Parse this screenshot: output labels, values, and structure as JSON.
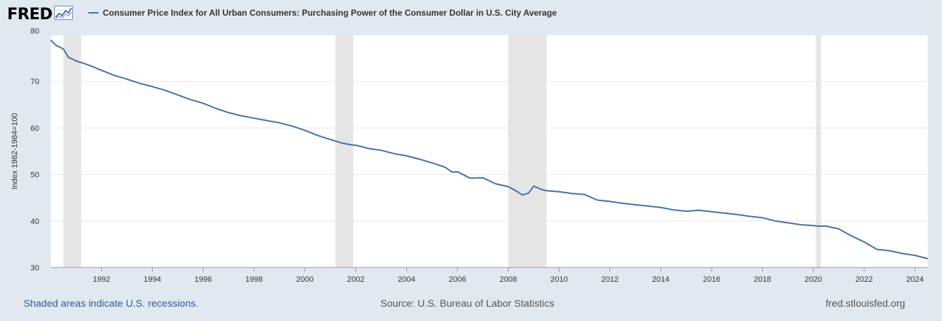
{
  "header": {
    "logo_text": "FRED",
    "logo_icon": "chart-line-icon",
    "legend_label": "Consumer Price Index for All Urban Consumers: Purchasing Power of the Consumer Dollar in U.S. City Average"
  },
  "footer": {
    "recession_note": "Shaded areas indicate U.S. recessions.",
    "source": "Source: U.S. Bureau of Labor Statistics",
    "site": "fred.stlouisfed.org"
  },
  "colors": {
    "background": "#e1e9f0",
    "plot_background": "#ffffff",
    "series": "#4572a7",
    "recession": "#e5e5e5",
    "grid": "#e6e6e6"
  },
  "chart_data": {
    "type": "line",
    "title": "Consumer Price Index for All Urban Consumers: Purchasing Power of the Consumer Dollar in U.S. City Average",
    "xlabel": "",
    "ylabel": "Index 1982-1984=100",
    "xlim": [
      1990.0,
      2024.5
    ],
    "ylim": [
      30,
      80
    ],
    "x_ticks": [
      "1992",
      "1994",
      "1996",
      "1998",
      "2000",
      "2002",
      "2004",
      "2006",
      "2008",
      "2010",
      "2012",
      "2014",
      "2016",
      "2018",
      "2020",
      "2022",
      "2024"
    ],
    "y_ticks": [
      30,
      40,
      50,
      60,
      70,
      80
    ],
    "grid": true,
    "legend": "top-left",
    "recessions": [
      [
        1990.5,
        1991.2
      ],
      [
        2001.2,
        2001.9
      ],
      [
        2008.0,
        2009.5
      ],
      [
        2020.1,
        2020.3
      ]
    ],
    "series": [
      {
        "name": "Consumer Price Index for All Urban Consumers: Purchasing Power of the Consumer Dollar in U.S. City Average",
        "x": [
          1990.0,
          1990.2,
          1990.5,
          1990.7,
          1990.9,
          1991.0,
          1991.3,
          1991.6,
          1992.0,
          1992.5,
          1993.0,
          1993.5,
          1994.0,
          1994.5,
          1995.0,
          1995.5,
          1996.0,
          1996.5,
          1997.0,
          1997.5,
          1998.0,
          1998.5,
          1999.0,
          1999.5,
          2000.0,
          2000.5,
          2001.0,
          2001.5,
          2001.9,
          2002.0,
          2002.5,
          2003.0,
          2003.5,
          2004.0,
          2004.5,
          2005.0,
          2005.5,
          2005.8,
          2006.0,
          2006.5,
          2007.0,
          2007.5,
          2008.0,
          2008.3,
          2008.55,
          2008.8,
          2009.0,
          2009.3,
          2009.5,
          2010.0,
          2010.5,
          2011.0,
          2011.5,
          2012.0,
          2012.5,
          2013.0,
          2013.5,
          2014.0,
          2014.5,
          2015.0,
          2015.5,
          2016.0,
          2016.5,
          2017.0,
          2017.5,
          2018.0,
          2018.5,
          2019.0,
          2019.5,
          2020.0,
          2020.2,
          2020.5,
          2021.0,
          2021.5,
          2022.0,
          2022.5,
          2023.0,
          2023.5,
          2024.0,
          2024.5
        ],
        "values": [
          78.9,
          77.8,
          77.0,
          75.2,
          74.7,
          74.4,
          73.9,
          73.3,
          72.4,
          71.3,
          70.5,
          69.6,
          68.9,
          68.1,
          67.1,
          66.1,
          65.3,
          64.2,
          63.3,
          62.6,
          62.1,
          61.6,
          61.1,
          60.4,
          59.5,
          58.4,
          57.5,
          56.7,
          56.3,
          56.3,
          55.6,
          55.2,
          54.5,
          54.0,
          53.3,
          52.5,
          51.6,
          50.5,
          50.6,
          49.2,
          49.3,
          48.0,
          47.4,
          46.5,
          45.6,
          46.0,
          47.5,
          46.8,
          46.5,
          46.3,
          45.9,
          45.7,
          44.5,
          44.2,
          43.8,
          43.5,
          43.2,
          42.9,
          42.4,
          42.1,
          42.3,
          42.0,
          41.7,
          41.4,
          41.0,
          40.7,
          40.0,
          39.6,
          39.2,
          39.0,
          38.9,
          38.9,
          38.3,
          36.8,
          35.5,
          33.9,
          33.6,
          33.0,
          32.6,
          31.9
        ]
      }
    ]
  }
}
